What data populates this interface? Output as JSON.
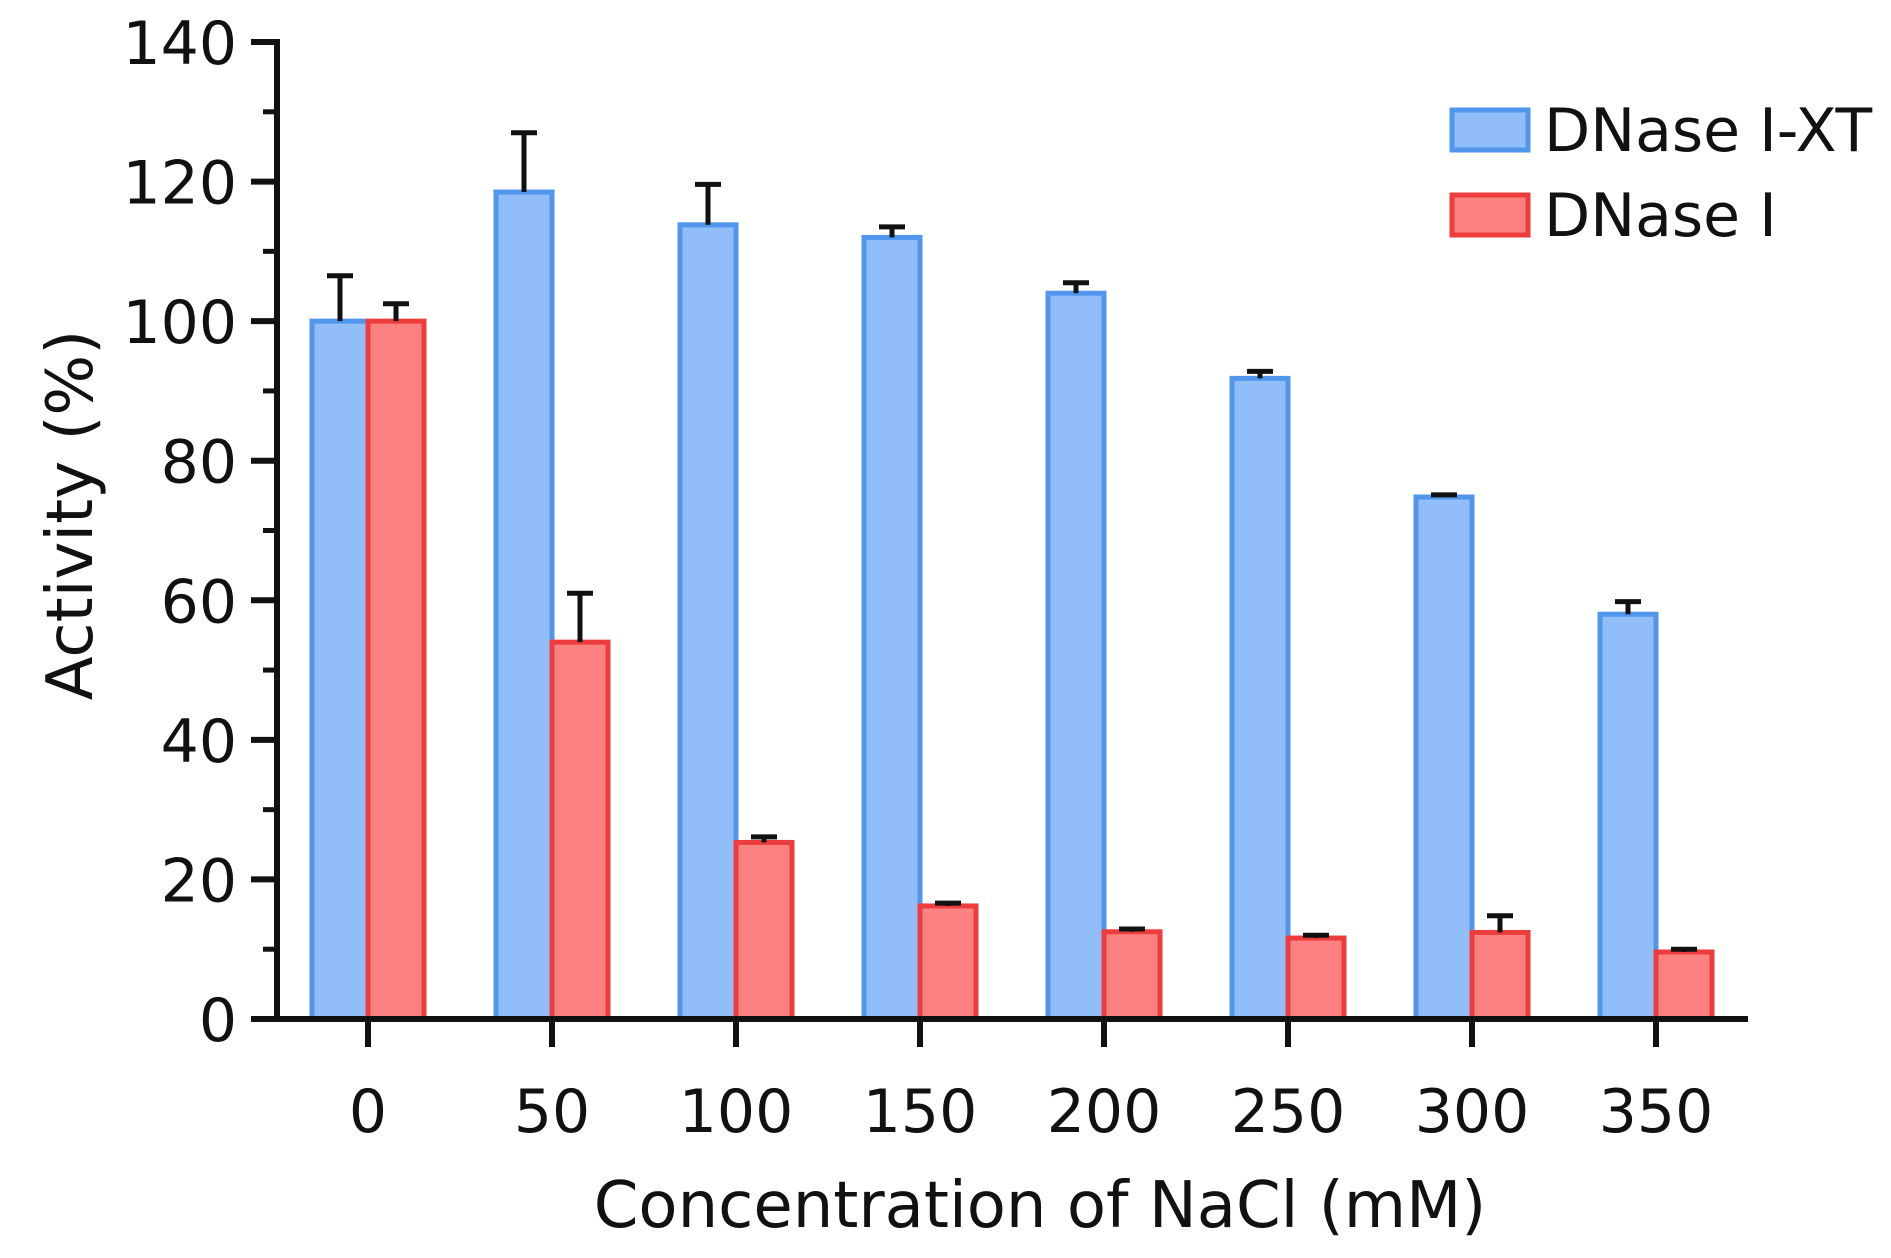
{
  "chart_data": {
    "type": "bar",
    "title": "",
    "xlabel": "Concentration of NaCl (mM)",
    "ylabel": "Activity (%)",
    "categories": [
      "0",
      "50",
      "100",
      "150",
      "200",
      "250",
      "300",
      "350"
    ],
    "ylim": [
      0,
      140
    ],
    "yticks": [
      "0",
      "20",
      "40",
      "60",
      "80",
      "100",
      "120",
      "140"
    ],
    "legend_position": "top-right",
    "error_bars": "upper only",
    "series": [
      {
        "name": "DNase I-XT",
        "fill": "#91bef9",
        "stroke": "#4f96ec",
        "values": [
          100,
          118.5,
          113.8,
          112.0,
          104.0,
          91.8,
          74.8,
          58.0
        ],
        "errors": [
          6.5,
          8.5,
          5.8,
          1.5,
          1.5,
          1.0,
          0.3,
          1.8
        ]
      },
      {
        "name": "DNase I",
        "fill": "#fc8281",
        "stroke": "#ec3c3c",
        "values": [
          100,
          54.0,
          25.3,
          16.2,
          12.5,
          11.6,
          12.4,
          9.6
        ],
        "errors": [
          2.5,
          7.0,
          0.8,
          0.4,
          0.4,
          0.4,
          2.4,
          0.4
        ]
      }
    ]
  }
}
